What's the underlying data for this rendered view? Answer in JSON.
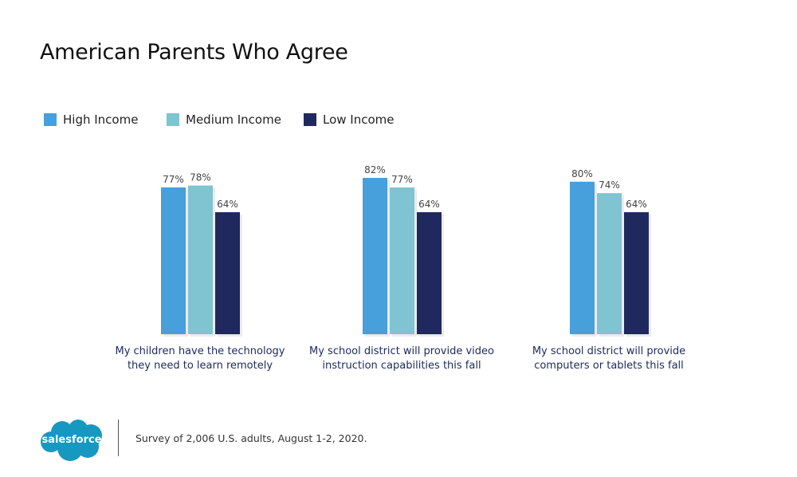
{
  "chart_data": {
    "type": "bar",
    "title": "American Parents Who Agree",
    "categories": [
      "My children have the technology they need to learn remotely",
      "My school district will provide video instruction capabilities this fall",
      "My school district will provide computers or tablets this fall"
    ],
    "category_lines": [
      [
        "My children have the technology",
        "they need to learn remotely"
      ],
      [
        "My school district will provide video",
        "instruction capabilities this fall"
      ],
      [
        "My school district will provide",
        "computers or tablets this fall"
      ]
    ],
    "series": [
      {
        "name": "High Income",
        "color": "#479fdb",
        "values": [
          77,
          82,
          80
        ]
      },
      {
        "name": "Medium Income",
        "color": "#7fc4d0",
        "values": [
          78,
          77,
          74
        ]
      },
      {
        "name": "Low Income",
        "color": "#20295e",
        "values": [
          64,
          64,
          64
        ]
      }
    ],
    "value_suffix": "%",
    "ylim": [
      0,
      100
    ],
    "grid": false,
    "legend_position": "top-left"
  },
  "footer": {
    "logo_text": "salesforce",
    "note": "Survey of 2,006 U.S. adults, August 1-2, 2020."
  }
}
